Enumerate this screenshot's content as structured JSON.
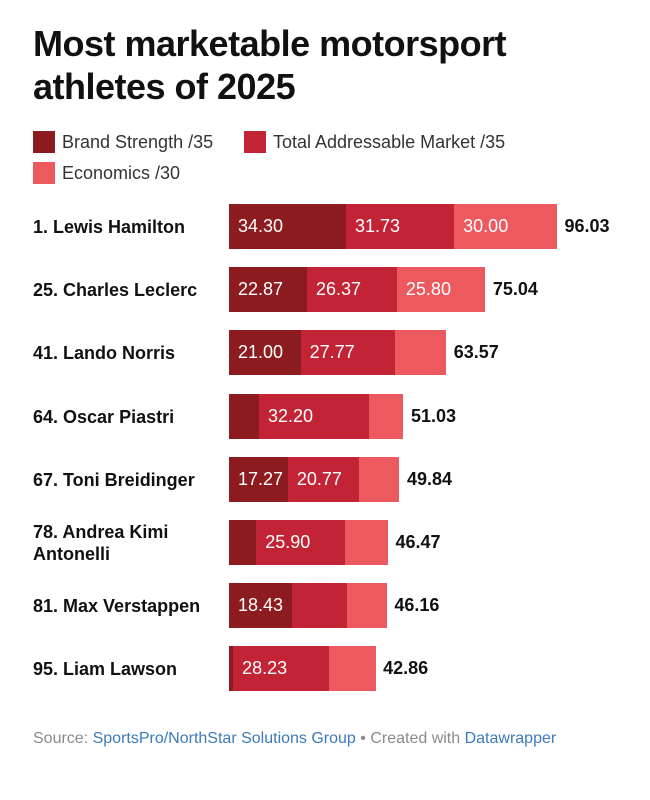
{
  "title": "Most marketable motorsport athletes of 2025",
  "legend": [
    {
      "label": "Brand Strength /35",
      "color": "#8c1c1f"
    },
    {
      "label": "Total Addressable Market /35",
      "color": "#c22436"
    },
    {
      "label": "Economics /30",
      "color": "#ec5a5f"
    }
  ],
  "chart_data": {
    "type": "bar",
    "orientation": "horizontal",
    "stacked": true,
    "title": "Most marketable motorsport athletes of 2025",
    "categories": [
      "1. Lewis Hamilton",
      "25. Charles Leclerc",
      "41. Lando Norris",
      "64. Oscar Piastri",
      "67. Toni Breidinger",
      "78. Andrea Kimi Antonelli",
      "81. Max Verstappen",
      "95. Liam Lawson"
    ],
    "series": [
      {
        "name": "Brand Strength /35",
        "color": "#8c1c1f",
        "values": [
          34.3,
          22.87,
          21.0,
          8.8,
          17.27,
          8.0,
          18.43,
          1.2
        ],
        "labels": [
          "34.30",
          "22.87",
          "21.00",
          "",
          "17.27",
          "",
          "18.43",
          ""
        ]
      },
      {
        "name": "Total Addressable Market /35",
        "color": "#c22436",
        "values": [
          31.73,
          26.37,
          27.77,
          32.2,
          20.77,
          25.9,
          16.2,
          28.23
        ],
        "labels": [
          "31.73",
          "26.37",
          "27.77",
          "32.20",
          "20.77",
          "25.90",
          "",
          "28.23"
        ]
      },
      {
        "name": "Economics /30",
        "color": "#ec5a5f",
        "values": [
          30.0,
          25.8,
          14.8,
          10.03,
          11.8,
          12.57,
          11.53,
          13.43
        ],
        "labels": [
          "30.00",
          "25.80",
          "",
          "",
          "",
          "",
          "",
          ""
        ]
      }
    ],
    "totals": [
      96.03,
      75.04,
      63.57,
      51.03,
      49.84,
      46.47,
      46.16,
      42.86
    ],
    "total_labels": [
      "96.03",
      "75.04",
      "63.57",
      "51.03",
      "49.84",
      "46.47",
      "46.16",
      "42.86"
    ],
    "xlim": [
      0,
      100
    ],
    "grid": false,
    "legend_position": "top-left"
  },
  "source": {
    "prefix": "Source: ",
    "link1": "SportsPro/NorthStar Solutions Group",
    "middle": " • Created with ",
    "link2": "Datawrapper"
  }
}
